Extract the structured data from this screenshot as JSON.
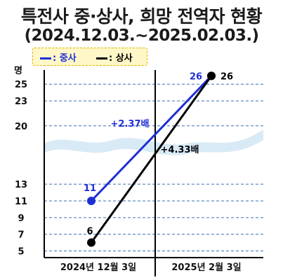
{
  "title": "특전사 중·상사, 희망 전역자 현황",
  "subtitle": "(2024.12.03.~2025.02.03.)",
  "unit": "명",
  "chart_data": {
    "type": "line",
    "categories": [
      "2024년 12월 3일",
      "2025년 2월 3일"
    ],
    "series": [
      {
        "name": "중사",
        "color": "#1f2fd6",
        "values": [
          11,
          26
        ]
      },
      {
        "name": "상사",
        "color": "#000000",
        "values": [
          6,
          26
        ]
      }
    ],
    "yticks": [
      5,
      7,
      9,
      11,
      13,
      20,
      23,
      25
    ],
    "ylim": [
      4.2,
      26.7
    ],
    "annotations": [
      {
        "text": "+2.37배",
        "color": "#1f2fd6"
      },
      {
        "text": "+4.33배",
        "color": "#000000"
      }
    ],
    "legend_position": "top-left",
    "grid": true
  },
  "legend": {
    "items": [
      {
        "label": ": 중사",
        "color": "#1f2fd6"
      },
      {
        "label": ": 상사",
        "color": "#000000"
      }
    ]
  }
}
